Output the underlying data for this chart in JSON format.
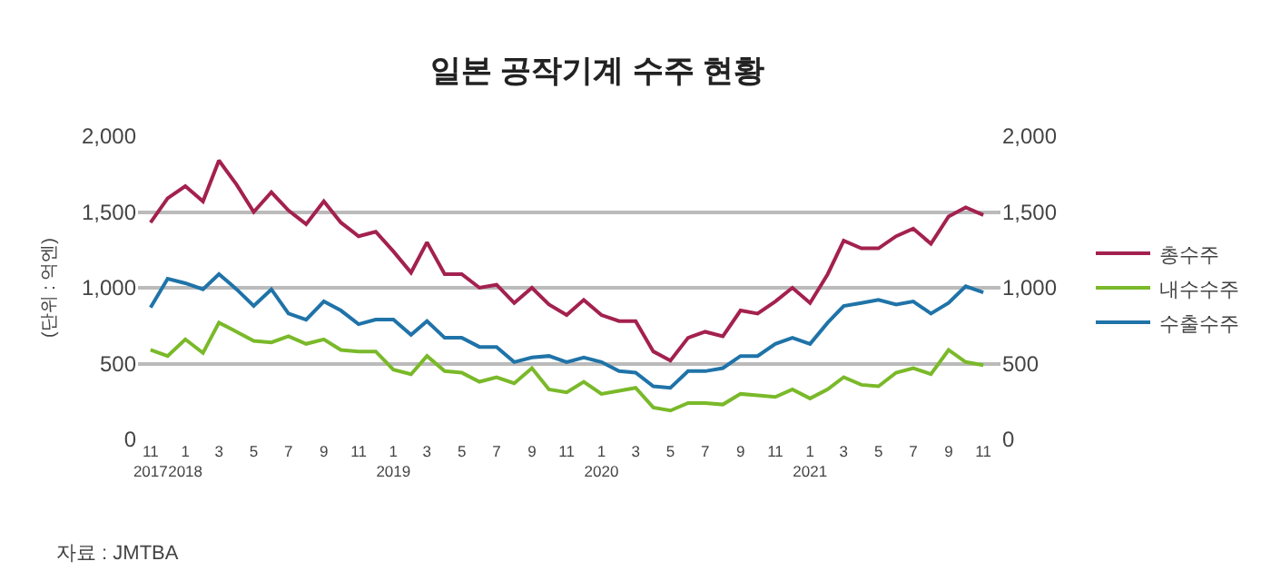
{
  "chart_data": {
    "type": "line",
    "title": "일본 공작기계 수주 현황",
    "ylabel": "(단위 : 억엔)",
    "annotations": [
      "자료 : JMTBA"
    ],
    "x": [
      "2017-11",
      "2017-12",
      "2018-01",
      "2018-02",
      "2018-03",
      "2018-04",
      "2018-05",
      "2018-06",
      "2018-07",
      "2018-08",
      "2018-09",
      "2018-10",
      "2018-11",
      "2018-12",
      "2019-01",
      "2019-02",
      "2019-03",
      "2019-04",
      "2019-05",
      "2019-06",
      "2019-07",
      "2019-08",
      "2019-09",
      "2019-10",
      "2019-11",
      "2019-12",
      "2020-01",
      "2020-02",
      "2020-03",
      "2020-04",
      "2020-05",
      "2020-06",
      "2020-07",
      "2020-08",
      "2020-09",
      "2020-10",
      "2020-11",
      "2020-12",
      "2021-01",
      "2021-02",
      "2021-03",
      "2021-04",
      "2021-05",
      "2021-06",
      "2021-07",
      "2021-08",
      "2021-09",
      "2021-10",
      "2021-11"
    ],
    "series": [
      {
        "name": "총수주",
        "color": "#a3214f",
        "values": [
          1430,
          1590,
          1670,
          1570,
          1840,
          1680,
          1500,
          1630,
          1510,
          1420,
          1570,
          1430,
          1340,
          1370,
          1240,
          1100,
          1300,
          1090,
          1090,
          1000,
          1020,
          900,
          1000,
          890,
          820,
          920,
          820,
          780,
          780,
          580,
          520,
          670,
          710,
          680,
          850,
          830,
          910,
          1000,
          900,
          1090,
          1310,
          1260,
          1260,
          1340,
          1390,
          1290,
          1470,
          1530,
          1480
        ]
      },
      {
        "name": "내수수주",
        "color": "#7ab929",
        "values": [
          590,
          550,
          660,
          570,
          770,
          710,
          650,
          640,
          680,
          630,
          660,
          590,
          580,
          580,
          460,
          430,
          550,
          450,
          440,
          380,
          410,
          370,
          470,
          330,
          310,
          380,
          300,
          320,
          340,
          210,
          190,
          240,
          240,
          230,
          300,
          290,
          280,
          330,
          270,
          330,
          410,
          360,
          350,
          440,
          470,
          430,
          590,
          510,
          490
        ]
      },
      {
        "name": "수출수주",
        "color": "#1f73a8",
        "values": [
          870,
          1060,
          1030,
          990,
          1090,
          990,
          880,
          990,
          830,
          790,
          910,
          850,
          760,
          790,
          790,
          690,
          780,
          670,
          670,
          610,
          610,
          510,
          540,
          550,
          510,
          540,
          510,
          450,
          440,
          350,
          340,
          450,
          450,
          470,
          550,
          550,
          630,
          670,
          630,
          770,
          880,
          900,
          920,
          890,
          910,
          830,
          900,
          1010,
          970
        ]
      }
    ],
    "xlim": [
      "2017-10-10",
      "2021-12-01"
    ],
    "xticks": [
      {
        "value": "2017-11",
        "label": "11\n2017"
      },
      {
        "value": "2018-01",
        "label": "1\n2018"
      },
      {
        "value": "2018-03",
        "label": "3"
      },
      {
        "value": "2018-05",
        "label": "5"
      },
      {
        "value": "2018-07",
        "label": "7"
      },
      {
        "value": "2018-09",
        "label": "9"
      },
      {
        "value": "2018-11",
        "label": "11"
      },
      {
        "value": "2019-01",
        "label": "1\n2019"
      },
      {
        "value": "2019-03",
        "label": "3"
      },
      {
        "value": "2019-05",
        "label": "5"
      },
      {
        "value": "2019-07",
        "label": "7"
      },
      {
        "value": "2019-09",
        "label": "9"
      },
      {
        "value": "2019-11",
        "label": "11"
      },
      {
        "value": "2020-01",
        "label": "1\n2020"
      },
      {
        "value": "2020-03",
        "label": "3"
      },
      {
        "value": "2020-05",
        "label": "5"
      },
      {
        "value": "2020-07",
        "label": "7"
      },
      {
        "value": "2020-09",
        "label": "9"
      },
      {
        "value": "2020-11",
        "label": "11"
      },
      {
        "value": "2021-01",
        "label": "1\n2021"
      },
      {
        "value": "2021-03",
        "label": "3"
      },
      {
        "value": "2021-05",
        "label": "5"
      },
      {
        "value": "2021-07",
        "label": "7"
      },
      {
        "value": "2021-09",
        "label": "9"
      },
      {
        "value": "2021-11",
        "label": "11"
      }
    ],
    "ylim": [
      0,
      2000
    ],
    "yticks": [
      0,
      500,
      {
        "value": 1000,
        "label": "1,000"
      },
      {
        "value": 1500,
        "label": "1,500"
      },
      {
        "value": 2000,
        "label": "2,000"
      }
    ],
    "y2lim": [
      0,
      2000
    ],
    "y2ticks": [
      0,
      500,
      {
        "value": 1000,
        "label": "1,000"
      },
      {
        "value": 1500,
        "label": "1,500"
      },
      {
        "value": 2000,
        "label": "2,000"
      }
    ],
    "grid": "y",
    "legend": "right",
    "marker": "none",
    "line_style": "solid"
  }
}
